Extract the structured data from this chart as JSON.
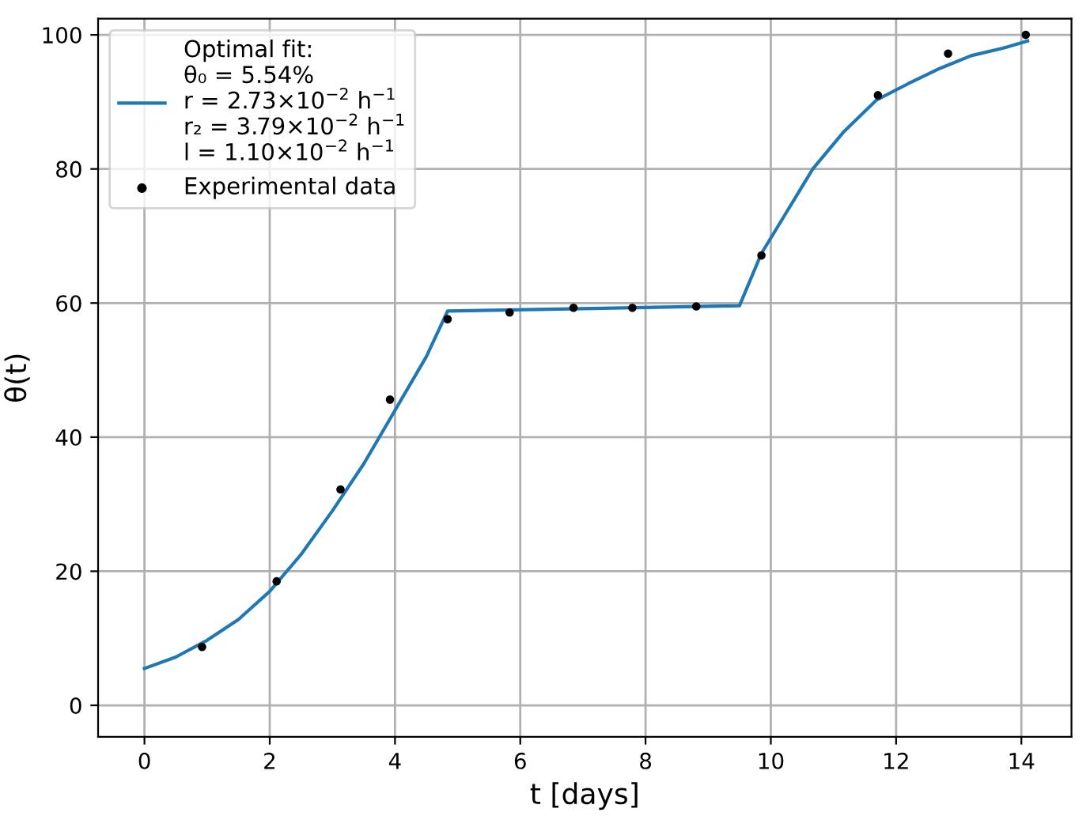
{
  "chart_data": {
    "type": "scatter",
    "xlabel": "t [days]",
    "ylabel": "θ(t)",
    "xlim": [
      -0.74,
      14.8
    ],
    "ylim": [
      -4.7,
      102.4
    ],
    "xticks": [
      0,
      2,
      4,
      6,
      8,
      10,
      12,
      14
    ],
    "yticks": [
      0,
      20,
      40,
      60,
      80,
      100
    ],
    "grid": true,
    "legend": "top left",
    "series": [
      {
        "type": "line",
        "name": "Optimal fit:\nθ₀ = 5.54%\nr = 2.73×10$^{−2}$ h$^{−1}$\nr₂ = 3.79×10$^{−2}$ h$^{−1}$\nl = 1.10×10$^{−2}$ h$^{−1}$",
        "color": "#1f77b4",
        "x": [
          0,
          0.5,
          1,
          1.5,
          2,
          2.5,
          3,
          3.5,
          4,
          4.5,
          4.84,
          9.5,
          9.85,
          10.15,
          10.67,
          11.17,
          11.69,
          12.19,
          12.7,
          13.2,
          13.7,
          14.1
        ],
        "values": [
          5.5,
          7.2,
          9.7,
          12.8,
          17,
          22.5,
          29,
          36,
          44,
          52,
          58.8,
          59.6,
          67.4,
          72,
          80,
          85.6,
          90.3,
          92.7,
          95,
          96.9,
          98,
          99.1
        ]
      },
      {
        "name": "Experimental data",
        "color": "#000000",
        "marker": "circle",
        "x": [
          0.92,
          2.11,
          3.13,
          3.92,
          4.84,
          5.83,
          6.85,
          7.79,
          8.81,
          9.85,
          11.71,
          12.83,
          14.07
        ],
        "values": [
          8.7,
          18.5,
          32.2,
          45.6,
          57.6,
          58.6,
          59.3,
          59.3,
          59.5,
          67.1,
          91.0,
          97.2,
          100.0
        ]
      }
    ]
  }
}
